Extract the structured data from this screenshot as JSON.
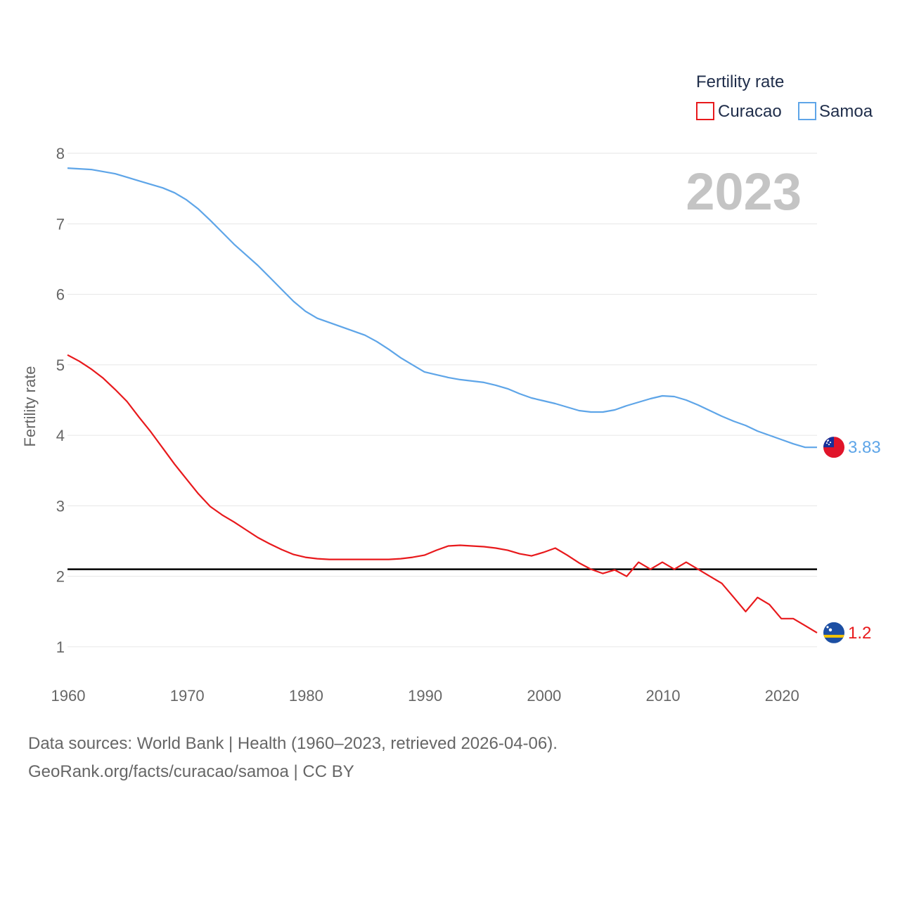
{
  "legend": {
    "title": "Fertility rate",
    "items": [
      {
        "name": "Curacao",
        "color": "#e8191c"
      },
      {
        "name": "Samoa",
        "color": "#5ea5e8"
      }
    ]
  },
  "year_display": "2023",
  "footer": {
    "sources": "Data sources: World Bank | Health (1960–2023, retrieved 2026-04-06).",
    "credit": "GeoRank.org/facts/curacao/samoa | CC BY"
  },
  "end_labels": {
    "curacao": "1.2",
    "samoa": "3.83"
  },
  "flags": {
    "curacao": {
      "icon": "curacao-flag-icon",
      "blue": "#1c4fa3",
      "yellow": "#f5c400",
      "star": "#ffffff"
    },
    "samoa": {
      "icon": "samoa-flag-icon",
      "red": "#e0142a",
      "blue": "#16309a",
      "star": "#ffffff"
    }
  },
  "chart_data": {
    "type": "line",
    "title": "",
    "xlabel": "",
    "ylabel": "Fertility rate",
    "xlim": [
      1960,
      2023
    ],
    "ylim": [
      0.7,
      8.2
    ],
    "x_ticks": [
      1960,
      1970,
      1980,
      1990,
      2000,
      2010,
      2020
    ],
    "y_ticks": [
      1,
      2,
      3,
      4,
      5,
      6,
      7,
      8
    ],
    "grid": true,
    "reference_line": {
      "y": 2.1,
      "color": "#000000"
    },
    "x": [
      1960,
      1961,
      1962,
      1963,
      1964,
      1965,
      1966,
      1967,
      1968,
      1969,
      1970,
      1971,
      1972,
      1973,
      1974,
      1975,
      1976,
      1977,
      1978,
      1979,
      1980,
      1981,
      1982,
      1983,
      1984,
      1985,
      1986,
      1987,
      1988,
      1989,
      1990,
      1991,
      1992,
      1993,
      1994,
      1995,
      1996,
      1997,
      1998,
      1999,
      2000,
      2001,
      2002,
      2003,
      2004,
      2005,
      2006,
      2007,
      2008,
      2009,
      2010,
      2011,
      2012,
      2013,
      2014,
      2015,
      2016,
      2017,
      2018,
      2019,
      2020,
      2021,
      2022,
      2023
    ],
    "series": [
      {
        "name": "Samoa",
        "color": "#5ea5e8",
        "values": [
          7.79,
          7.78,
          7.77,
          7.74,
          7.71,
          7.66,
          7.61,
          7.56,
          7.51,
          7.44,
          7.34,
          7.21,
          7.05,
          6.88,
          6.71,
          6.56,
          6.41,
          6.24,
          6.07,
          5.9,
          5.76,
          5.66,
          5.6,
          5.54,
          5.48,
          5.42,
          5.33,
          5.22,
          5.1,
          5.0,
          4.9,
          4.86,
          4.82,
          4.79,
          4.77,
          4.75,
          4.71,
          4.66,
          4.59,
          4.53,
          4.49,
          4.45,
          4.4,
          4.35,
          4.33,
          4.33,
          4.36,
          4.42,
          4.47,
          4.52,
          4.56,
          4.55,
          4.5,
          4.43,
          4.35,
          4.27,
          4.2,
          4.14,
          4.06,
          4.0,
          3.94,
          3.88,
          3.83,
          3.83
        ]
      },
      {
        "name": "Curacao",
        "color": "#e8191c",
        "values": [
          5.14,
          5.05,
          4.94,
          4.81,
          4.65,
          4.48,
          4.26,
          4.05,
          3.82,
          3.59,
          3.38,
          3.17,
          2.99,
          2.87,
          2.77,
          2.66,
          2.55,
          2.46,
          2.38,
          2.31,
          2.27,
          2.25,
          2.24,
          2.24,
          2.24,
          2.24,
          2.24,
          2.24,
          2.25,
          2.27,
          2.3,
          2.37,
          2.43,
          2.44,
          2.43,
          2.42,
          2.4,
          2.37,
          2.32,
          2.29,
          2.34,
          2.4,
          2.3,
          2.19,
          2.1,
          2.04,
          2.09,
          2.0,
          2.2,
          2.1,
          2.2,
          2.1,
          2.2,
          2.1,
          2.0,
          1.9,
          1.7,
          1.5,
          1.7,
          1.6,
          1.4,
          1.4,
          1.3,
          1.2
        ]
      }
    ]
  }
}
